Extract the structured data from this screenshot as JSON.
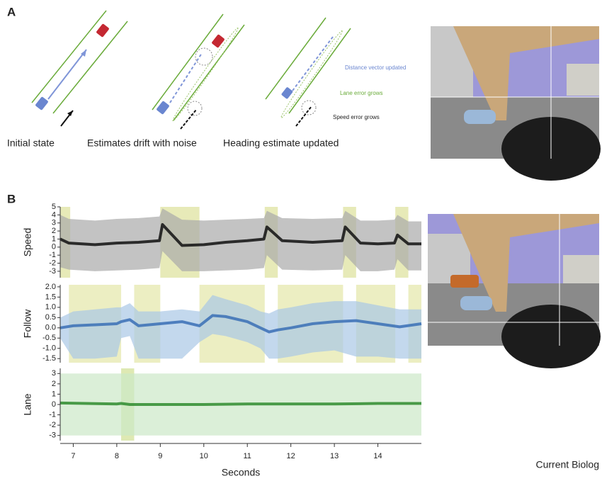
{
  "panel_a": {
    "label": "A",
    "captions": [
      "Initial state",
      "Estimates drift with noise",
      "Heading estimate updated"
    ],
    "annotations": [
      "Distance vector updated",
      "Lane error grows",
      "Speed error grows"
    ]
  },
  "panel_b_label": "B",
  "credit": "Current Biolog",
  "chart_data": [
    {
      "type": "line",
      "ylabel": "Speed",
      "color": "#111111",
      "band_color": "#a9a9a9",
      "highlight_color": "#dfe3a0",
      "x": [
        6.7,
        6.9,
        7.5,
        8,
        8.5,
        8.98,
        9.05,
        9.5,
        10,
        10.5,
        11,
        11.38,
        11.45,
        11.8,
        12.5,
        13.18,
        13.25,
        13.6,
        14,
        14.38,
        14.45,
        14.7,
        15
      ],
      "values": [
        1,
        0.5,
        0.3,
        0.5,
        0.6,
        0.8,
        2.8,
        0.2,
        0.3,
        0.6,
        0.8,
        1,
        2.5,
        0.8,
        0.6,
        0.8,
        2.5,
        0.5,
        0.4,
        0.5,
        1.5,
        0.4,
        0.4
      ],
      "upper": [
        4,
        3.5,
        3.3,
        3.5,
        3.6,
        3.8,
        4.8,
        3.4,
        3.3,
        3.4,
        3.5,
        3.6,
        4.5,
        3.6,
        3.5,
        3.6,
        4.5,
        3.3,
        3.3,
        3.4,
        4,
        3.2,
        3.2
      ],
      "lower": [
        -2.5,
        -2.8,
        -3,
        -2.9,
        -2.8,
        -2.6,
        -0.5,
        -3,
        -3,
        -2.9,
        -2.8,
        -2.6,
        -1,
        -2.8,
        -2.9,
        -2.8,
        -1,
        -3,
        -3,
        -2.8,
        -1.5,
        -2.9,
        -2.9
      ],
      "highlights": [
        [
          6.7,
          6.93
        ],
        [
          9,
          9.9
        ],
        [
          11.4,
          11.7
        ],
        [
          13.2,
          13.5
        ],
        [
          14.4,
          14.7
        ]
      ],
      "xlim": [
        6.7,
        15
      ],
      "ylim": [
        -3.8,
        5
      ],
      "yticks": [
        5,
        4,
        3,
        2,
        1,
        0,
        -1,
        -2,
        -3
      ]
    },
    {
      "type": "line",
      "ylabel": "Follow",
      "color": "#3a6fb5",
      "band_color": "#a9c8e6",
      "highlight_color": "#e6e8ae",
      "x": [
        6.7,
        7,
        7.5,
        8,
        8.1,
        8.3,
        8.5,
        9,
        9.5,
        9.9,
        10.2,
        10.5,
        11,
        11.3,
        11.5,
        11.7,
        12,
        12.5,
        13,
        13.5,
        14,
        14.5,
        15
      ],
      "values": [
        0,
        0.1,
        0.15,
        0.2,
        0.3,
        0.4,
        0.1,
        0.2,
        0.3,
        0.1,
        0.6,
        0.55,
        0.3,
        0,
        -0.2,
        -0.1,
        0,
        0.2,
        0.3,
        0.35,
        0.2,
        0.05,
        0.2
      ],
      "upper": [
        0.5,
        0.8,
        0.9,
        1,
        1,
        1.2,
        0.8,
        0.8,
        0.9,
        0.8,
        1.6,
        1.4,
        1.1,
        0.8,
        0.7,
        0.9,
        1,
        1.2,
        1.3,
        1.3,
        1.1,
        0.9,
        0.9
      ],
      "lower": [
        -0.5,
        -1.5,
        -1.5,
        -1.4,
        -0.5,
        -0.4,
        -1.5,
        -1.5,
        -1.5,
        -0.7,
        -0.3,
        -0.4,
        -0.7,
        -1,
        -1.5,
        -1.5,
        -1.4,
        -1.2,
        -1.1,
        -1.4,
        -1.4,
        -1.5,
        -1.5
      ],
      "highlights": [
        [
          6.9,
          8.1
        ],
        [
          8.4,
          9
        ],
        [
          9.9,
          11.4
        ],
        [
          11.7,
          13.2
        ],
        [
          13.5,
          14.4
        ],
        [
          14.7,
          15
        ]
      ],
      "xlim": [
        6.7,
        15
      ],
      "ylim": [
        -1.7,
        2.1
      ],
      "yticks": [
        {
          "value": 2,
          "label": "2.0"
        },
        1.5,
        {
          "value": 1,
          "label": "1.0"
        },
        0.5,
        {
          "value": 0,
          "label": "0.0"
        },
        -0.5,
        {
          "value": -1,
          "label": "-1.0"
        },
        -1.5
      ]
    },
    {
      "type": "line",
      "ylabel": "Lane",
      "xlabel": "Seconds",
      "color": "#2e8b2e",
      "band_color": "#cce8c8",
      "highlight_color": "#d3e29a",
      "x": [
        6.7,
        8,
        8.1,
        8.3,
        9,
        10,
        11,
        12,
        13,
        14,
        15
      ],
      "values": [
        0.15,
        0.05,
        0.1,
        0,
        0,
        0,
        0.05,
        0.05,
        0.05,
        0.1,
        0.1
      ],
      "upper": [
        3,
        3,
        3,
        3,
        3,
        3,
        3,
        3,
        3,
        3,
        3
      ],
      "lower": [
        -3,
        -3,
        -3,
        -3,
        -3,
        -3,
        -3,
        -3,
        -3,
        -3,
        -3
      ],
      "highlights": [
        [
          8.1,
          8.4
        ]
      ],
      "xlim": [
        6.7,
        15
      ],
      "ylim": [
        -3.5,
        3.5
      ],
      "yticks": [
        3,
        2,
        1,
        0,
        -1,
        -2,
        -3
      ],
      "xticks": [
        7,
        8,
        9,
        10,
        11,
        12,
        13,
        14
      ]
    }
  ]
}
